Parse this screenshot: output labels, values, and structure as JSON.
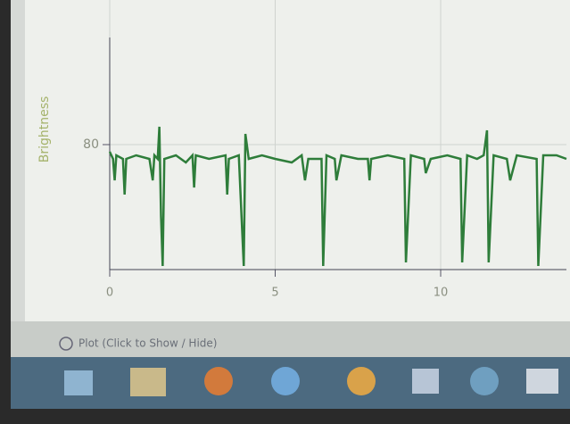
{
  "chart_data": {
    "type": "line",
    "y_label": "Brightness",
    "x": [
      0,
      0.1,
      0.15,
      0.2,
      0.4,
      0.45,
      0.5,
      0.8,
      1.2,
      1.3,
      1.35,
      1.45,
      1.5,
      1.55,
      1.6,
      1.65,
      2.0,
      2.3,
      2.5,
      2.55,
      2.6,
      3.0,
      3.5,
      3.55,
      3.6,
      3.9,
      4.05,
      4.1,
      4.2,
      4.6,
      5.0,
      5.5,
      5.8,
      5.9,
      6.0,
      6.4,
      6.45,
      6.55,
      6.8,
      6.85,
      7.0,
      7.5,
      7.8,
      7.85,
      7.9,
      8.4,
      8.9,
      8.95,
      9.1,
      9.5,
      9.55,
      9.7,
      10.2,
      10.6,
      10.65,
      10.8,
      11.1,
      11.3,
      11.4,
      11.45,
      11.6,
      12.0,
      12.1,
      12.3,
      12.9,
      12.95,
      13.1,
      13.5,
      13.8
    ],
    "y": [
      78,
      76,
      70,
      77,
      76,
      66,
      76,
      77,
      76,
      70,
      77,
      76,
      85,
      60,
      46,
      76,
      77,
      75,
      77,
      68,
      77,
      76,
      77,
      66,
      76,
      77,
      46,
      83,
      76,
      77,
      76,
      75,
      77,
      70,
      76,
      76,
      46,
      77,
      76,
      70,
      77,
      76,
      76,
      70,
      76,
      77,
      76,
      47,
      77,
      76,
      72,
      76,
      77,
      76,
      47,
      77,
      76,
      77,
      84,
      47,
      77,
      76,
      70,
      77,
      76,
      46,
      77,
      77,
      76
    ],
    "color": "#2e7d3a",
    "xlim": [
      0,
      13.8
    ],
    "xticks": [
      0,
      5,
      10
    ],
    "ylim": [
      45,
      110
    ],
    "yticks": [
      80
    ],
    "grid": true
  },
  "toolbar": {
    "toggle_label": "Plot (Click to Show / Hide)"
  }
}
